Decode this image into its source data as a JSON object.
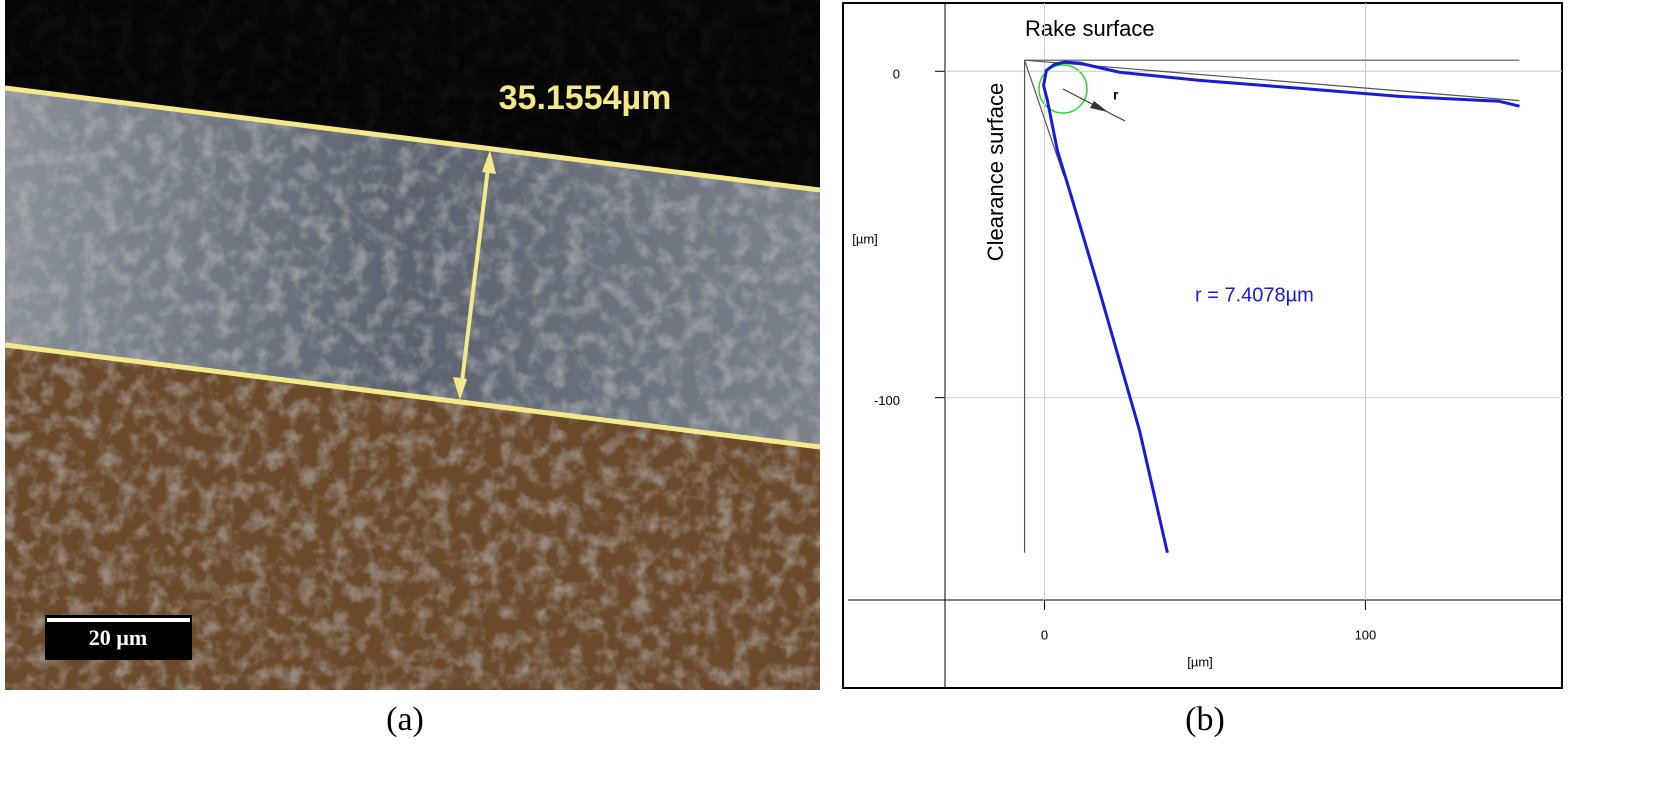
{
  "panel_a": {
    "measurement": "35.1554µm",
    "scale_bar": "20 µm",
    "caption": "(a)"
  },
  "chart_data": {
    "type": "line",
    "caption": "(b)",
    "x_label": "[µm]",
    "y_label": "[µm]",
    "annotations": [
      "Rake surface",
      "Clearance surface",
      "r = 7.4078µm",
      "r"
    ],
    "xlim": [
      -31,
      160
    ],
    "ylim": [
      -162,
      20
    ],
    "xticks": [
      0,
      100
    ],
    "yticks": [
      -100,
      0
    ],
    "grid": true,
    "legend": false,
    "series": [
      {
        "color": "#555555",
        "x": [
          148,
          -6.2,
          -6.2
        ],
        "values": [
          3.4,
          3.4,
          -147.5
        ]
      },
      {
        "color": "#555555",
        "x": [
          -6.2,
          148
        ],
        "values": [
          3.4,
          -9
        ]
      },
      {
        "color": "#555555",
        "x": [
          -6.2,
          6
        ],
        "values": [
          3.4,
          -32
        ]
      },
      {
        "color": "#1a1adc",
        "x": [
          38.3,
          29.6,
          17.1,
          7.8,
          4,
          0.9,
          -0.3,
          0.6,
          3.1,
          6.2,
          10.9,
          23.4,
          48.3,
          79.4,
          110.6,
          141.7,
          148
        ],
        "values": [
          -147.5,
          -110,
          -67.2,
          -36.5,
          -24.2,
          -8.9,
          -4.3,
          0.3,
          2.1,
          2.8,
          2.5,
          -0.3,
          -2.8,
          -5.2,
          -7.7,
          -9.2,
          -10.7
        ]
      }
    ]
  }
}
